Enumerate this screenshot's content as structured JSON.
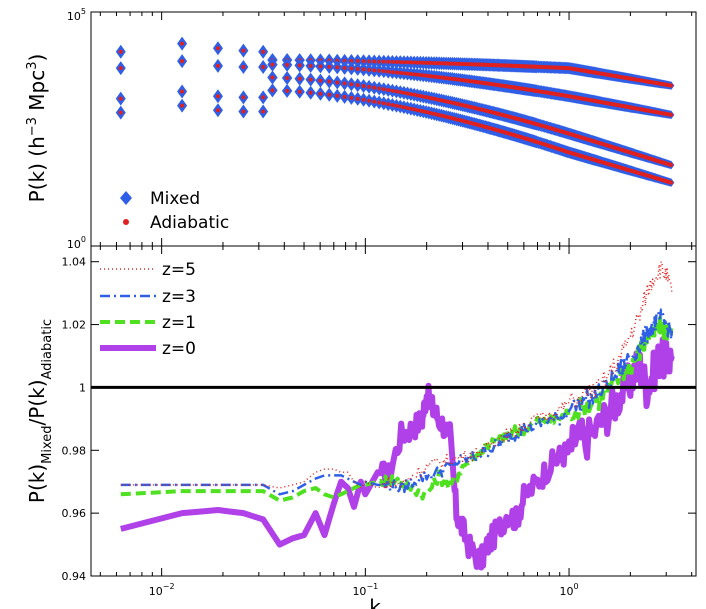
{
  "chart_data": [
    {
      "type": "scatter",
      "panel": "top",
      "xscale": "log",
      "yscale": "log",
      "xlim": [
        0.0045,
        4.2
      ],
      "ylim_label": [
        "10^0",
        "10^5"
      ],
      "ylabel": {
        "base": "P(k) (h",
        "sup1": "−3",
        "mid": " Mpc",
        "sup2": "3",
        "end": ")"
      },
      "ytick_labels": [
        {
          "base": "10",
          "exp": "5"
        },
        {
          "base": "10",
          "exp": "0"
        }
      ],
      "legend": {
        "position": "bottom-left",
        "entries": [
          "Mixed",
          "Adiabatic"
        ]
      },
      "series_style": {
        "Mixed": {
          "marker": "diamond",
          "color": "#2f5fe6"
        },
        "Adiabatic": {
          "marker": "dot",
          "color": "#e0201e"
        }
      },
      "series": [
        {
          "name": "z=0",
          "y_start": 0.795,
          "y_end": 0.685,
          "y_at_k1": 0.76
        },
        {
          "name": "z=1",
          "y_start": 0.775,
          "y_end": 0.56,
          "y_at_k1": 0.64
        },
        {
          "name": "z=3",
          "y_start": 0.72,
          "y_end": 0.345,
          "y_at_k1": 0.48
        },
        {
          "name": "z=5",
          "y_start": 0.665,
          "y_end": 0.27,
          "y_at_k1": 0.4
        }
      ],
      "low_k_points": [
        {
          "k": 0.0063,
          "ys": [
            0.83,
            0.76,
            0.63,
            0.57
          ]
        },
        {
          "k": 0.0126,
          "ys": [
            0.865,
            0.79,
            0.66,
            0.6
          ]
        },
        {
          "k": 0.0189,
          "ys": [
            0.845,
            0.77,
            0.64,
            0.58
          ]
        },
        {
          "k": 0.0252,
          "ys": [
            0.835,
            0.765,
            0.635,
            0.575
          ]
        },
        {
          "k": 0.0315,
          "ys": [
            0.83,
            0.765,
            0.635,
            0.575
          ]
        }
      ]
    },
    {
      "type": "line",
      "panel": "bottom",
      "xscale": "log",
      "xlim": [
        0.0045,
        4.2
      ],
      "ylim": [
        0.94,
        1.045
      ],
      "xlabel": "k",
      "ylabel": {
        "base": "P(k)",
        "sub1": "Mixed",
        "mid": "/P(k)",
        "sub2": "Adiabatic"
      },
      "yticks": [
        0.94,
        0.96,
        0.98,
        1.0,
        1.02,
        1.04
      ],
      "ytick_labels": [
        "0.94",
        "0.96",
        "0.98",
        "1",
        "1.02",
        "1.04"
      ],
      "xticks": [
        0.01,
        0.1,
        1
      ],
      "xtick_labels": [
        {
          "base": "10",
          "exp": "−2"
        },
        {
          "base": "10",
          "exp": "−1"
        },
        {
          "base": "10",
          "exp": "0"
        }
      ],
      "reference_line": 1.0,
      "legend": {
        "position": "top-left",
        "entries": [
          "z=5",
          "z=3",
          "z=1",
          "z=0"
        ]
      },
      "series": [
        {
          "name": "z=5",
          "color": "#e0201e",
          "style": "dotted",
          "points": [
            [
              0.0063,
              0.969
            ],
            [
              0.0126,
              0.969
            ],
            [
              0.0189,
              0.969
            ],
            [
              0.0252,
              0.969
            ],
            [
              0.0315,
              0.969
            ],
            [
              0.038,
              0.968
            ],
            [
              0.044,
              0.969
            ],
            [
              0.05,
              0.97
            ],
            [
              0.057,
              0.973
            ],
            [
              0.063,
              0.974
            ],
            [
              0.07,
              0.974
            ],
            [
              0.076,
              0.973
            ],
            [
              0.082,
              0.973
            ],
            [
              0.088,
              0.97
            ],
            [
              0.095,
              0.968
            ],
            [
              0.1,
              0.97
            ],
            [
              0.115,
              0.968
            ],
            [
              0.13,
              0.97
            ],
            [
              0.15,
              0.969
            ],
            [
              0.17,
              0.972
            ],
            [
              0.2,
              0.975
            ],
            [
              0.23,
              0.976
            ],
            [
              0.26,
              0.977
            ],
            [
              0.3,
              0.978
            ],
            [
              0.35,
              0.979
            ],
            [
              0.4,
              0.981
            ],
            [
              0.45,
              0.984
            ],
            [
              0.5,
              0.985
            ],
            [
              0.55,
              0.986
            ],
            [
              0.6,
              0.988
            ],
            [
              0.7,
              0.99
            ],
            [
              0.8,
              0.991
            ],
            [
              0.9,
              0.993
            ],
            [
              1.0,
              0.995
            ],
            [
              1.2,
              0.998
            ],
            [
              1.4,
              1.0
            ],
            [
              1.6,
              1.005
            ],
            [
              1.8,
              1.01
            ],
            [
              2.0,
              1.017
            ],
            [
              2.2,
              1.022
            ],
            [
              2.4,
              1.03
            ],
            [
              2.6,
              1.035
            ],
            [
              2.8,
              1.038
            ],
            [
              3.0,
              1.036
            ],
            [
              3.2,
              1.03
            ]
          ]
        },
        {
          "name": "z=3",
          "color": "#2f5fe6",
          "style": "dashdot",
          "points": [
            [
              0.0063,
              0.969
            ],
            [
              0.0126,
              0.969
            ],
            [
              0.0189,
              0.969
            ],
            [
              0.0252,
              0.969
            ],
            [
              0.0315,
              0.969
            ],
            [
              0.038,
              0.966
            ],
            [
              0.044,
              0.967
            ],
            [
              0.05,
              0.969
            ],
            [
              0.057,
              0.971
            ],
            [
              0.063,
              0.972
            ],
            [
              0.07,
              0.972
            ],
            [
              0.076,
              0.972
            ],
            [
              0.082,
              0.971
            ],
            [
              0.088,
              0.97
            ],
            [
              0.095,
              0.969
            ],
            [
              0.1,
              0.97
            ],
            [
              0.115,
              0.969
            ],
            [
              0.13,
              0.969
            ],
            [
              0.15,
              0.968
            ],
            [
              0.17,
              0.97
            ],
            [
              0.2,
              0.972
            ],
            [
              0.23,
              0.973
            ],
            [
              0.26,
              0.975
            ],
            [
              0.3,
              0.977
            ],
            [
              0.35,
              0.978
            ],
            [
              0.4,
              0.98
            ],
            [
              0.45,
              0.982
            ],
            [
              0.5,
              0.984
            ],
            [
              0.55,
              0.985
            ],
            [
              0.6,
              0.987
            ],
            [
              0.7,
              0.988
            ],
            [
              0.8,
              0.99
            ],
            [
              0.9,
              0.99
            ],
            [
              1.0,
              0.993
            ],
            [
              1.2,
              0.996
            ],
            [
              1.4,
              0.998
            ],
            [
              1.6,
              1.002
            ],
            [
              1.8,
              1.006
            ],
            [
              2.0,
              1.01
            ],
            [
              2.2,
              1.013
            ],
            [
              2.4,
              1.017
            ],
            [
              2.6,
              1.02
            ],
            [
              2.8,
              1.022
            ],
            [
              3.0,
              1.02
            ],
            [
              3.2,
              1.018
            ]
          ]
        },
        {
          "name": "z=1",
          "color": "#4fe020",
          "style": "dashed",
          "points": [
            [
              0.0063,
              0.966
            ],
            [
              0.0126,
              0.967
            ],
            [
              0.0189,
              0.967
            ],
            [
              0.0252,
              0.967
            ],
            [
              0.0315,
              0.967
            ],
            [
              0.038,
              0.964
            ],
            [
              0.044,
              0.965
            ],
            [
              0.05,
              0.967
            ],
            [
              0.057,
              0.968
            ],
            [
              0.063,
              0.966
            ],
            [
              0.07,
              0.965
            ],
            [
              0.076,
              0.966
            ],
            [
              0.082,
              0.967
            ],
            [
              0.088,
              0.968
            ],
            [
              0.095,
              0.969
            ],
            [
              0.1,
              0.969
            ],
            [
              0.115,
              0.97
            ],
            [
              0.13,
              0.971
            ],
            [
              0.15,
              0.97
            ],
            [
              0.17,
              0.968
            ],
            [
              0.2,
              0.966
            ],
            [
              0.23,
              0.972
            ],
            [
              0.26,
              0.968
            ],
            [
              0.3,
              0.975
            ],
            [
              0.35,
              0.978
            ],
            [
              0.4,
              0.982
            ],
            [
              0.45,
              0.983
            ],
            [
              0.5,
              0.985
            ],
            [
              0.55,
              0.986
            ],
            [
              0.6,
              0.987
            ],
            [
              0.7,
              0.989
            ],
            [
              0.8,
              0.989
            ],
            [
              0.9,
              0.99
            ],
            [
              1.0,
              0.992
            ],
            [
              1.2,
              0.994
            ],
            [
              1.4,
              0.996
            ],
            [
              1.6,
              1.0
            ],
            [
              1.8,
              1.004
            ],
            [
              2.0,
              1.007
            ],
            [
              2.2,
              1.011
            ],
            [
              2.4,
              1.015
            ],
            [
              2.6,
              1.017
            ],
            [
              2.8,
              1.019
            ],
            [
              3.0,
              1.018
            ],
            [
              3.2,
              1.02
            ]
          ]
        },
        {
          "name": "z=0",
          "color": "#b040e8",
          "style": "solid",
          "points": [
            [
              0.0063,
              0.955
            ],
            [
              0.0126,
              0.96
            ],
            [
              0.0189,
              0.961
            ],
            [
              0.0252,
              0.96
            ],
            [
              0.0315,
              0.958
            ],
            [
              0.038,
              0.95
            ],
            [
              0.044,
              0.952
            ],
            [
              0.05,
              0.953
            ],
            [
              0.057,
              0.96
            ],
            [
              0.063,
              0.953
            ],
            [
              0.07,
              0.963
            ],
            [
              0.076,
              0.97
            ],
            [
              0.082,
              0.968
            ],
            [
              0.088,
              0.962
            ],
            [
              0.095,
              0.97
            ],
            [
              0.1,
              0.966
            ],
            [
              0.115,
              0.973
            ],
            [
              0.13,
              0.972
            ],
            [
              0.15,
              0.985
            ],
            [
              0.17,
              0.987
            ],
            [
              0.19,
              0.99
            ],
            [
              0.2,
              0.998
            ],
            [
              0.215,
              0.993
            ],
            [
              0.23,
              0.99
            ],
            [
              0.26,
              0.985
            ],
            [
              0.28,
              0.96
            ],
            [
              0.3,
              0.955
            ],
            [
              0.33,
              0.948
            ],
            [
              0.37,
              0.945
            ],
            [
              0.4,
              0.95
            ],
            [
              0.45,
              0.955
            ],
            [
              0.5,
              0.96
            ],
            [
              0.55,
              0.958
            ],
            [
              0.6,
              0.965
            ],
            [
              0.7,
              0.97
            ],
            [
              0.8,
              0.975
            ],
            [
              0.9,
              0.978
            ],
            [
              1.0,
              0.98
            ],
            [
              1.1,
              0.985
            ],
            [
              1.2,
              0.983
            ],
            [
              1.4,
              0.988
            ],
            [
              1.6,
              0.993
            ],
            [
              1.8,
              0.998
            ],
            [
              2.0,
              1.002
            ],
            [
              2.2,
              1.008
            ],
            [
              2.4,
              1.0
            ],
            [
              2.6,
              1.005
            ],
            [
              2.8,
              1.01
            ],
            [
              3.0,
              1.008
            ],
            [
              3.2,
              1.01
            ]
          ]
        }
      ]
    }
  ]
}
